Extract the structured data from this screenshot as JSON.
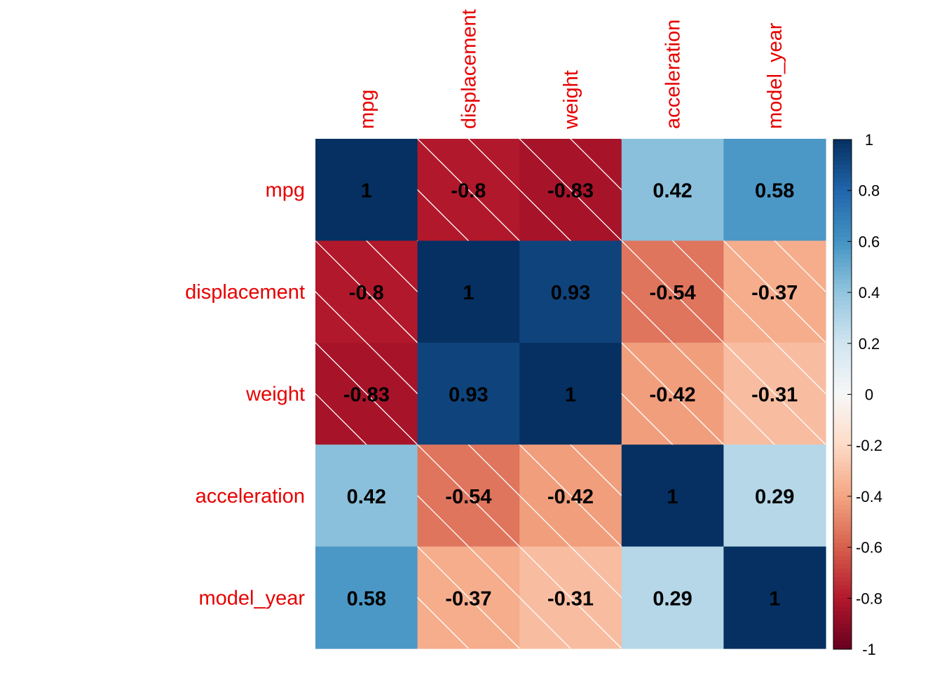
{
  "chart_data": {
    "type": "heatmap",
    "title": "",
    "variables": [
      "mpg",
      "displacement",
      "weight",
      "acceleration",
      "model_year"
    ],
    "matrix": [
      [
        1,
        -0.8,
        -0.83,
        0.42,
        0.58
      ],
      [
        -0.8,
        1,
        0.93,
        -0.54,
        -0.37
      ],
      [
        -0.83,
        0.93,
        1,
        -0.42,
        -0.31
      ],
      [
        0.42,
        -0.54,
        -0.42,
        1,
        0.29
      ],
      [
        0.58,
        -0.37,
        -0.31,
        0.29,
        1
      ]
    ],
    "color_range": [
      -1,
      1
    ],
    "colorbar_ticks": [
      "1",
      "0.8",
      "0.6",
      "0.4",
      "0.2",
      "0",
      "-0.2",
      "-0.4",
      "-0.6",
      "-0.8",
      "-1"
    ],
    "negative_cells_hatched": true,
    "label_color": "#e60000",
    "value_color": "#000000",
    "legend_position": "right"
  }
}
